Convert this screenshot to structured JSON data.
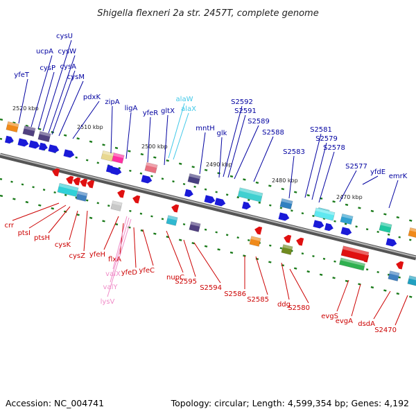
{
  "title": "Shigella flexneri 2a str. 2457T, complete genome",
  "footer": {
    "accession": "Accession: NC_004741",
    "summary": "Topology: circular; Length: 4,599,354 bp; Genes: 4,192"
  },
  "colors": {
    "forward_label": "#0000a0",
    "reverse_label": "#cc0000",
    "rna_forward_label": "#40c8e8",
    "rna_reverse_label": "#f08cc8",
    "backbone": "#8a8a8a",
    "tick": "#1a7a1a"
  },
  "scale_labels": [
    "2520 kbp",
    "2510 kbp",
    "2500 kbp",
    "2490 kbp",
    "2480 kbp",
    "2470 kbp"
  ],
  "forward_genes": [
    "yfeT",
    "ucpA",
    "cysP",
    "cysU",
    "cysW",
    "cysA",
    "cysM",
    "pdxK",
    "zipA",
    "ligA",
    "yfeR",
    "gltX",
    "mntH",
    "glk",
    "S2592",
    "S2591",
    "S2589",
    "S2588",
    "S2583",
    "S2581",
    "S2579",
    "S2578",
    "S2577",
    "yfdE",
    "emrK"
  ],
  "forward_rna_genes": [
    "alaW",
    "alaX"
  ],
  "reverse_genes": [
    "crr",
    "ptsI",
    "ptsH",
    "cysK",
    "cysZ",
    "yfeH",
    "flxA",
    "yfeD",
    "yfeC",
    "nupC",
    "S2595",
    "S2594",
    "S2586",
    "S2585",
    "ddg",
    "S2580",
    "evgS",
    "evgA",
    "dsdA",
    "S2470"
  ],
  "reverse_rna_genes": [
    "valX",
    "valY",
    "lysV"
  ]
}
